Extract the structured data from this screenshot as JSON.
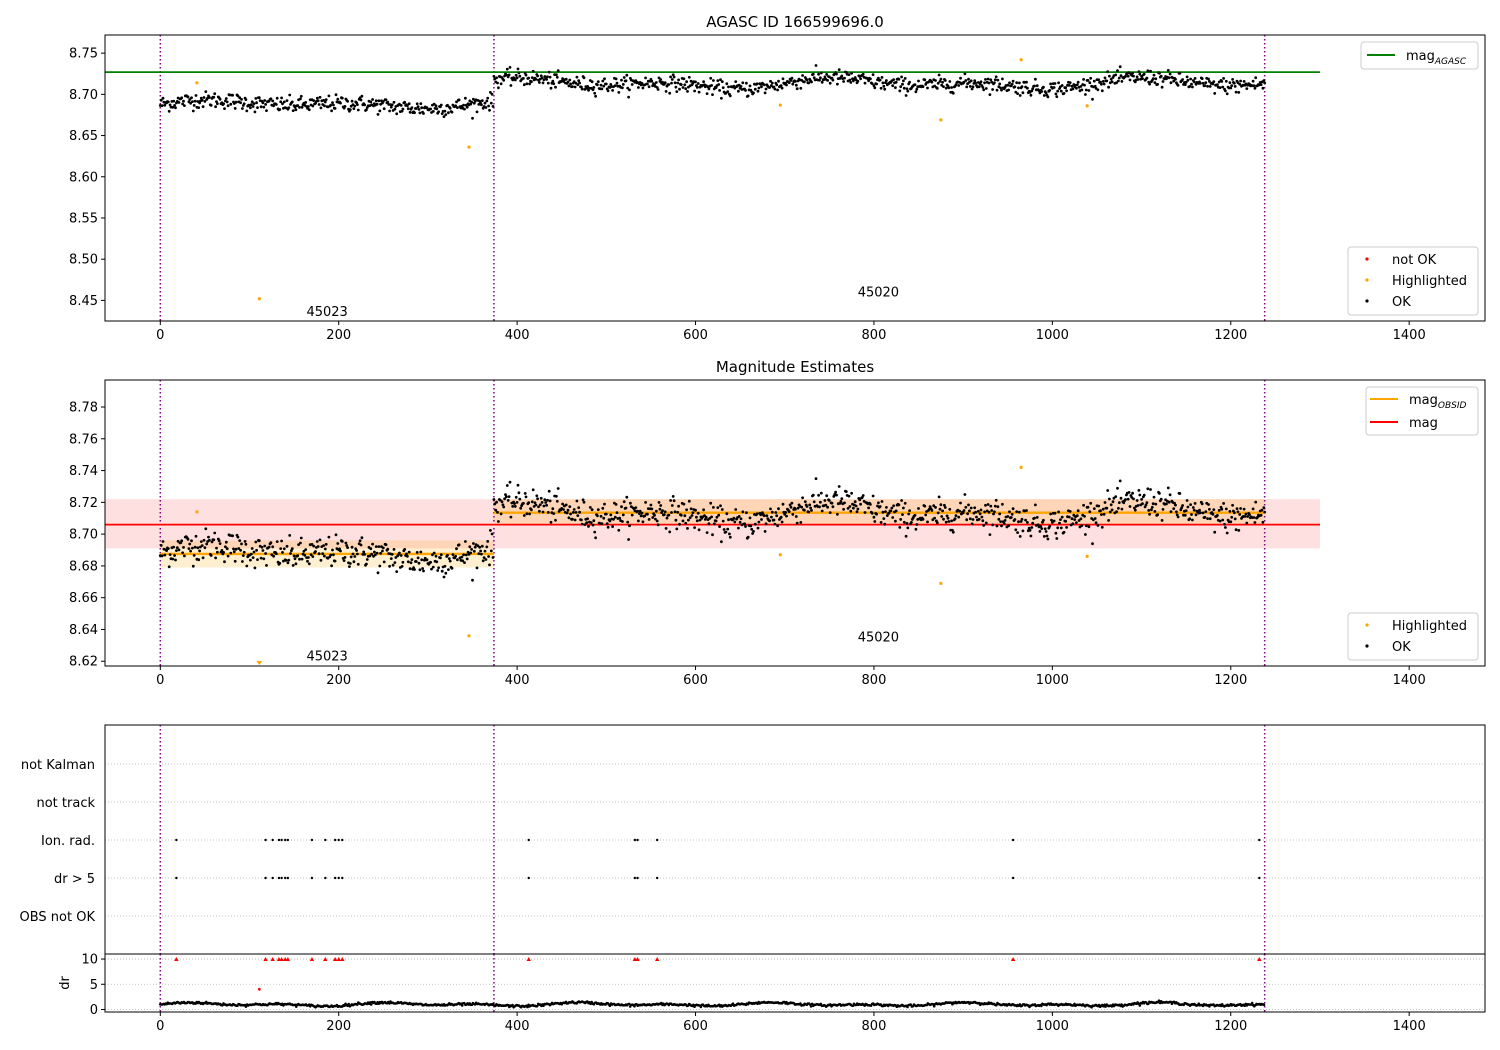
{
  "chart_data": [
    {
      "type": "scatter",
      "title": "AGASC ID 166599696.0",
      "xlim": [
        -62,
        1485
      ],
      "ylim": [
        8.425,
        8.772
      ],
      "x_ticks": [
        0,
        200,
        400,
        600,
        800,
        1000,
        1200,
        1400
      ],
      "y_ticks": [
        8.45,
        8.5,
        8.55,
        8.6,
        8.65,
        8.7,
        8.75
      ],
      "grid": false,
      "obs_boundaries": [
        0,
        374,
        1238
      ],
      "obs_labels": [
        {
          "text": "45023",
          "x": 187,
          "y": 8.437
        },
        {
          "text": "45020",
          "x": 805,
          "y": 8.461
        }
      ],
      "reference_line": {
        "name": "mag_AGASC",
        "value": 8.727,
        "x_range": [
          -62,
          1300
        ],
        "color": "#008000"
      },
      "segments": [
        {
          "x_range": [
            0,
            374
          ],
          "mean": 8.688,
          "sd": 0.009,
          "amp": 0.006
        },
        {
          "x_range": [
            374,
            1238
          ],
          "mean": 8.713,
          "sd": 0.0085,
          "amp": 0.008
        }
      ],
      "highlighted_points": [
        {
          "x": 41,
          "y": 8.714
        },
        {
          "x": 111,
          "y": 8.452
        },
        {
          "x": 346,
          "y": 8.636
        },
        {
          "x": 695,
          "y": 8.687
        },
        {
          "x": 875,
          "y": 8.669
        },
        {
          "x": 965,
          "y": 8.742
        },
        {
          "x": 1039,
          "y": 8.686
        }
      ],
      "legend_upper": {
        "position": "top-right",
        "entries": [
          {
            "label": "mag",
            "sub": "AGASC",
            "color": "#008000"
          }
        ]
      },
      "legend_lower": {
        "position": "bottom-right",
        "entries": [
          {
            "label": "not OK",
            "color": "#ff0000"
          },
          {
            "label": "Highlighted",
            "color": "#ffa500"
          },
          {
            "label": "OK",
            "color": "#000000"
          }
        ]
      },
      "colors": {
        "ok": "#000000",
        "highlighted": "#ffa500",
        "not_ok": "#ff0000",
        "boundary": "#800080"
      }
    },
    {
      "type": "scatter",
      "title": "Magnitude Estimates",
      "xlim": [
        -62,
        1485
      ],
      "ylim": [
        8.617,
        8.797
      ],
      "x_ticks": [
        0,
        200,
        400,
        600,
        800,
        1000,
        1200,
        1400
      ],
      "y_ticks": [
        8.62,
        8.64,
        8.66,
        8.68,
        8.7,
        8.72,
        8.74,
        8.76,
        8.78
      ],
      "grid": false,
      "obs_boundaries": [
        0,
        374,
        1238
      ],
      "obs_labels": [
        {
          "text": "45023",
          "x": 187,
          "y": 8.6235
        },
        {
          "text": "45020",
          "x": 805,
          "y": 8.6355
        }
      ],
      "mag_line": {
        "value": 8.706,
        "band": [
          8.691,
          8.722
        ],
        "x_range": [
          -62,
          1300
        ],
        "color": "#ff0000",
        "band_color": "#ffe0e0"
      },
      "obsid_segments": [
        {
          "x_range": [
            0,
            374
          ],
          "value": 8.6875,
          "band": [
            8.679,
            8.696
          ]
        },
        {
          "x_range": [
            374,
            1238
          ],
          "value": 8.7135,
          "band": [
            8.706,
            8.722
          ]
        }
      ],
      "legend_upper": {
        "position": "top-right",
        "entries": [
          {
            "label": "mag",
            "sub": "OBSID",
            "color": "#ffa500"
          },
          {
            "label": "mag",
            "color": "#ff0000"
          }
        ]
      },
      "legend_lower": {
        "position": "bottom-right",
        "entries": [
          {
            "label": "Highlighted",
            "color": "#ffa500"
          },
          {
            "label": "OK",
            "color": "#000000"
          }
        ]
      }
    },
    {
      "type": "scatter",
      "title": "",
      "xlim": [
        -62,
        1485
      ],
      "categories": [
        "not Kalman",
        "not track",
        "Ion. rad.",
        "dr > 5",
        "OBS not OK"
      ],
      "flag_x": [
        18,
        118,
        126,
        133,
        136,
        140,
        143,
        170,
        185,
        196,
        200,
        204,
        413,
        532,
        535,
        557,
        956,
        1232
      ],
      "flags": {
        "Ion. rad.": "flag_x",
        "dr > 5": "flag_x"
      },
      "grid": "dotted"
    },
    {
      "type": "line",
      "title": "",
      "ylabel": "dr",
      "xlim": [
        -62,
        1485
      ],
      "ylim": [
        -0.5,
        11.0
      ],
      "x_ticks": [
        0,
        200,
        400,
        600,
        800,
        1000,
        1200,
        1400
      ],
      "y_ticks": [
        0,
        5,
        10
      ],
      "dr_capped_x": [
        18,
        118,
        126,
        133,
        136,
        140,
        143,
        170,
        185,
        196,
        200,
        204,
        413,
        532,
        535,
        557,
        956,
        1232
      ],
      "dr_cap_value": 10,
      "extra_point": {
        "x": 111,
        "y": 4.0
      },
      "dr_baseline": [
        0.4,
        1.6
      ],
      "obs_boundaries": [
        0,
        374,
        1238
      ]
    }
  ]
}
